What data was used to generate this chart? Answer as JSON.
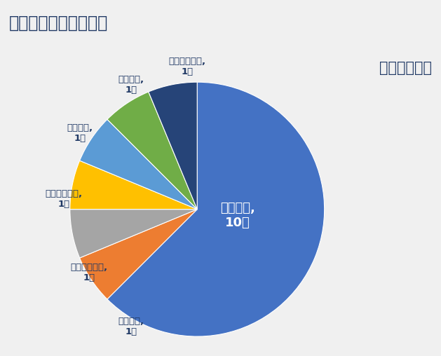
{
  "title": "＜参考＞入居企業属性",
  "subtitle": "主な連携大学",
  "labels": [
    "東京大学",
    "東北大学",
    "電気通信大学",
    "東京理科大学",
    "関西大学",
    "創価大学",
    "がんセンター"
  ],
  "label_texts": [
    "東京大学,\n10社",
    "東北大学,\n1社",
    "電気通信大学,\n1社",
    "東京理科大学,\n1社",
    "関西大学,\n1社",
    "創価大学,\n1社",
    "がんセンター,\n1社"
  ],
  "inner_label": "東京大学,\n10社",
  "values": [
    10,
    1,
    1,
    1,
    1,
    1,
    1
  ],
  "colors": [
    "#4472C4",
    "#ED7D31",
    "#A5A5A5",
    "#FFC000",
    "#5B9BD5",
    "#70AD47",
    "#264478"
  ],
  "background_color": "#F0F0F0",
  "title_bg_color": "#E0E0E0",
  "title_color": "#1F3864",
  "subtitle_color": "#1F3864",
  "label_color": "#1F3864",
  "title_fontsize": 17,
  "subtitle_fontsize": 15,
  "label_fontsize": 9.5,
  "inner_label_fontsize": 13,
  "startangle": 90,
  "counterclock": false
}
